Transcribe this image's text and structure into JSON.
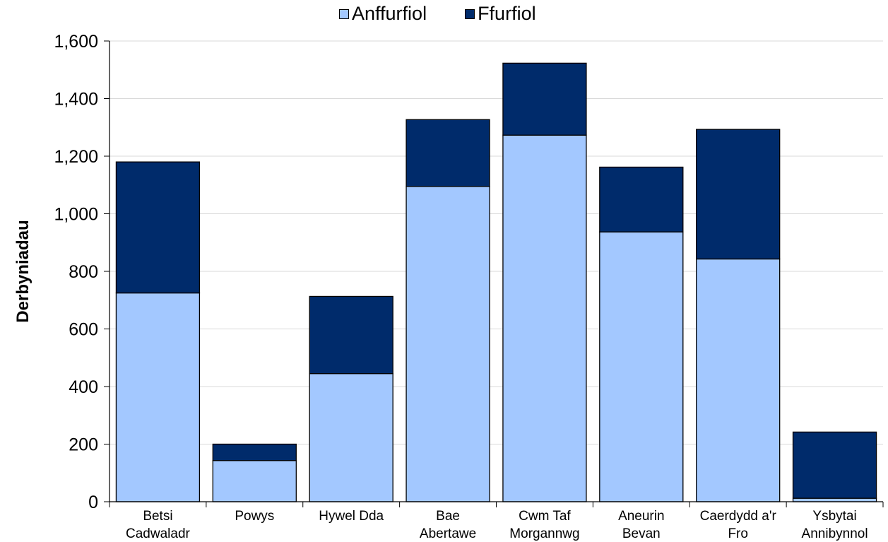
{
  "chart_data": {
    "type": "bar",
    "stacked": true,
    "title": "",
    "xlabel": "",
    "ylabel": "Derbyniadau",
    "ylim": [
      0,
      1600
    ],
    "yticks": [
      "0",
      "200",
      "400",
      "600",
      "800",
      "1,000",
      "1,200",
      "1,400",
      "1,600"
    ],
    "ytick_values": [
      0,
      200,
      400,
      600,
      800,
      1000,
      1200,
      1400,
      1600
    ],
    "grid": true,
    "legend": "top",
    "categories": [
      [
        "Betsi",
        "Cadwaladr"
      ],
      [
        "Powys"
      ],
      [
        "Hywel Dda"
      ],
      [
        "Bae",
        "Abertawe"
      ],
      [
        "Cwm Taf",
        "Morgannwg"
      ],
      [
        "Aneurin",
        "Bevan"
      ],
      [
        "Caerdydd a'r",
        "Fro"
      ],
      [
        "Ysbytai",
        "Annibynnol"
      ]
    ],
    "series": [
      {
        "name": "Anffurfiol",
        "color": "#a3c8ff",
        "values": [
          725,
          143,
          445,
          1095,
          1273,
          937,
          843,
          12
        ]
      },
      {
        "name": "Ffurfiol",
        "color": "#002b6b",
        "values": [
          455,
          57,
          268,
          232,
          250,
          225,
          450,
          230
        ]
      }
    ]
  }
}
